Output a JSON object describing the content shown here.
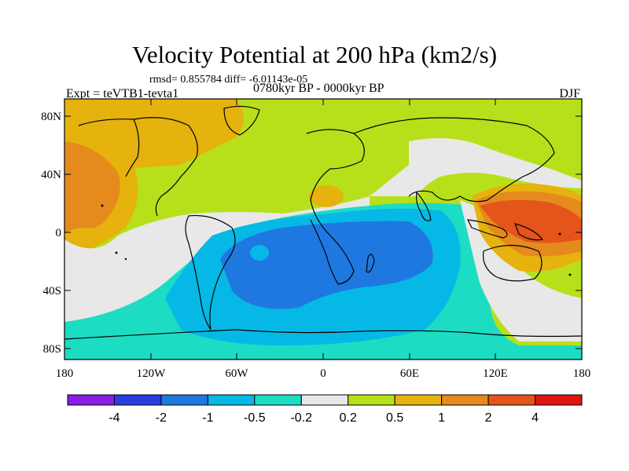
{
  "title": "Velocity Potential at 200 hPa (km2/s)",
  "stats": "rmsd= 0.855784  diff= -6.01143e-05",
  "experiment": "Expt = teVTB1-tevta1",
  "period": "0780kyr BP - 0000kyr BP",
  "season": "DJF",
  "lat_labels": [
    "80N",
    "40N",
    "0",
    "40S",
    "80S"
  ],
  "lon_labels": [
    "180",
    "120W",
    "60W",
    "0",
    "60E",
    "120E",
    "180"
  ],
  "colorbar": {
    "levels": [
      "-4",
      "-2",
      "-1",
      "-0.5",
      "-0.2",
      "0.2",
      "0.5",
      "1",
      "2",
      "4"
    ],
    "colors": [
      "#8a1ee6",
      "#2a3ee0",
      "#1f78e0",
      "#06b8e6",
      "#1cdcc4",
      "#e8e8e8",
      "#b7e01a",
      "#e6b20e",
      "#e58a1c",
      "#e5541a",
      "#e0140e"
    ]
  }
}
